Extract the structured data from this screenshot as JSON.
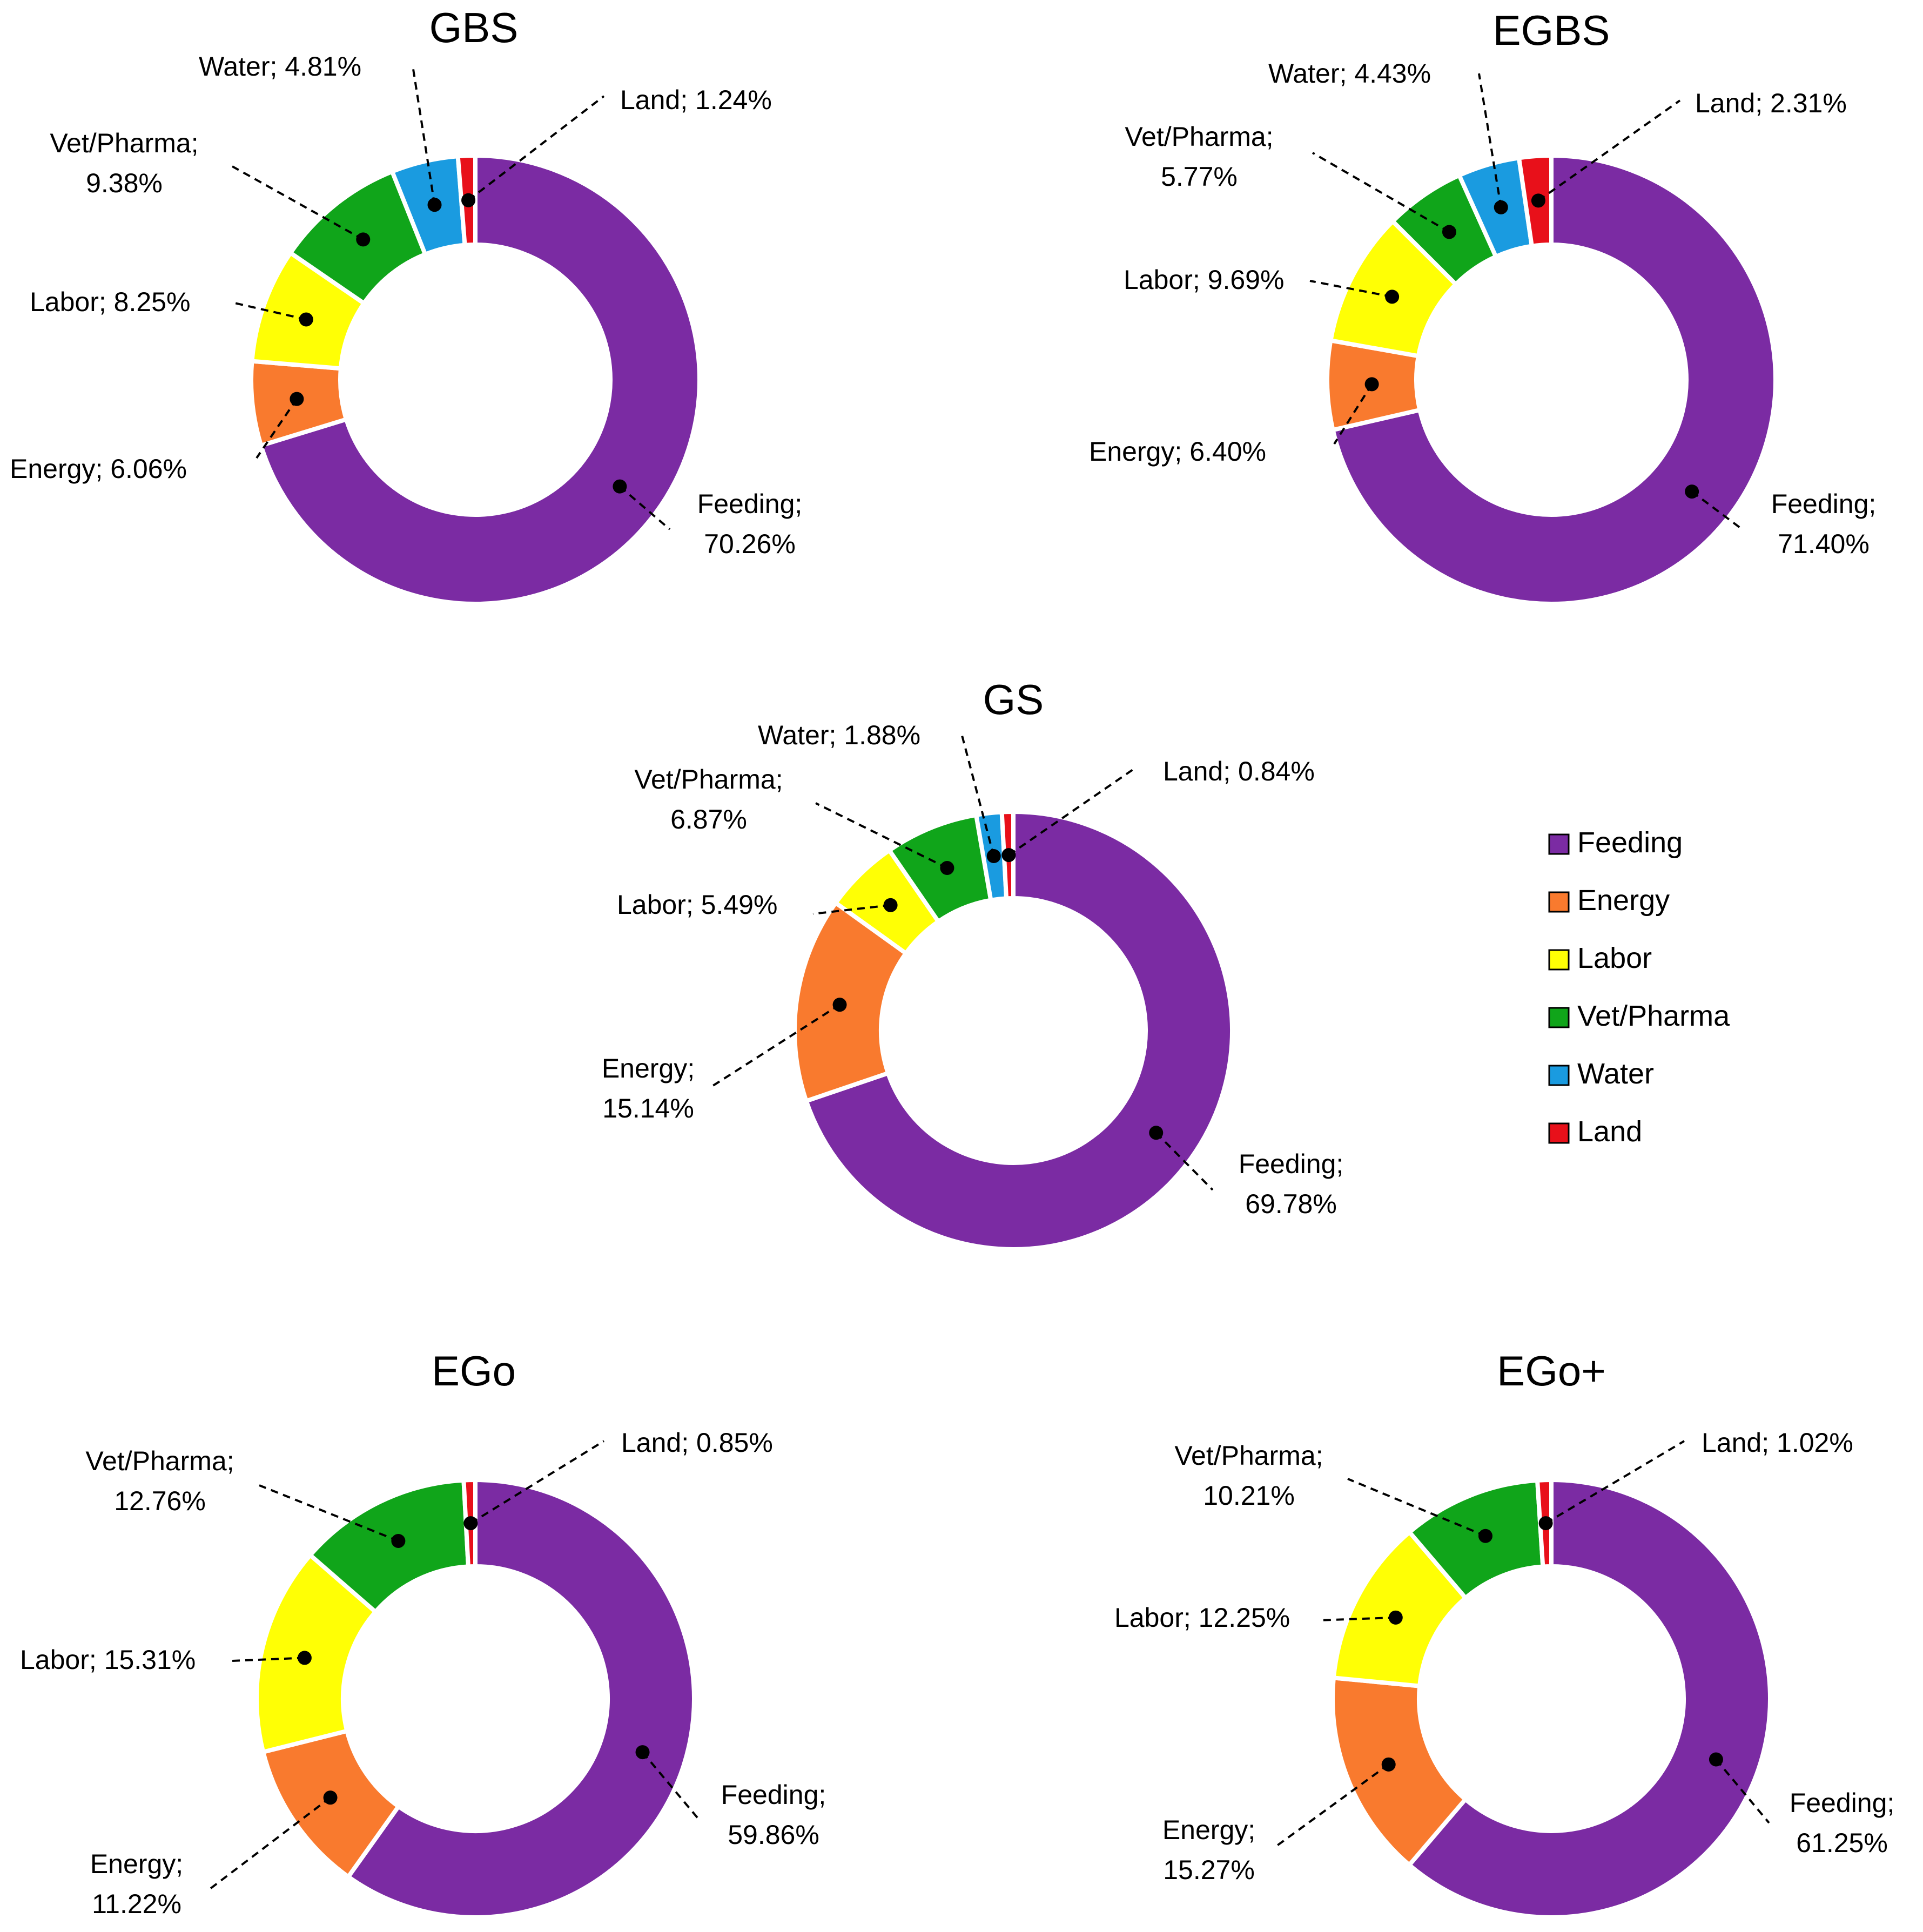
{
  "chart_data": [
    {
      "type": "donut",
      "title": "GBS",
      "categories": [
        "Feeding",
        "Energy",
        "Labor",
        "Vet/Pharma",
        "Water",
        "Land"
      ],
      "values": [
        70.26,
        6.06,
        8.25,
        9.38,
        4.81,
        1.24
      ],
      "labels": [
        "Feeding; 70.26%",
        "Energy; 6.06%",
        "Labor; 8.25%",
        "Vet/Pharma; 9.38%",
        "Water; 4.81%",
        "Land; 1.24%"
      ]
    },
    {
      "type": "donut",
      "title": "EGBS",
      "categories": [
        "Feeding",
        "Energy",
        "Labor",
        "Vet/Pharma",
        "Water",
        "Land"
      ],
      "values": [
        71.4,
        6.4,
        9.69,
        5.77,
        4.43,
        2.31
      ],
      "labels": [
        "Feeding; 71.40%",
        "Energy; 6.40%",
        "Labor; 9.69%",
        "Vet/Pharma; 5.77%",
        "Water; 4.43%",
        "Land; 2.31%"
      ]
    },
    {
      "type": "donut",
      "title": "GS",
      "categories": [
        "Feeding",
        "Energy",
        "Labor",
        "Vet/Pharma",
        "Water",
        "Land"
      ],
      "values": [
        69.78,
        15.14,
        5.49,
        6.87,
        1.88,
        0.84
      ],
      "labels": [
        "Feeding; 69.78%",
        "Energy; 15.14%",
        "Labor; 5.49%",
        "Vet/Pharma; 6.87%",
        "Water; 1.88%",
        "Land; 0.84%"
      ]
    },
    {
      "type": "donut",
      "title": "EGo",
      "categories": [
        "Feeding",
        "Energy",
        "Labor",
        "Vet/Pharma",
        "Land"
      ],
      "values": [
        59.86,
        11.22,
        15.31,
        12.76,
        0.85
      ],
      "labels": [
        "Feeding; 59.86%",
        "Energy; 11.22%",
        "Labor; 15.31%",
        "Vet/Pharma; 12.76%",
        "Land; 0.85%"
      ]
    },
    {
      "type": "donut",
      "title": "EGo+",
      "categories": [
        "Feeding",
        "Energy",
        "Labor",
        "Vet/Pharma",
        "Land"
      ],
      "values": [
        61.25,
        15.27,
        12.25,
        10.21,
        1.02
      ],
      "labels": [
        "Feeding; 61.25%",
        "Energy; 15.27%",
        "Labor; 12.25%",
        "Vet/Pharma; 10.21%",
        "Land; 1.02%"
      ]
    }
  ],
  "legend": {
    "items": [
      {
        "label": "Feeding",
        "color": "#7B2BA3"
      },
      {
        "label": "Energy",
        "color": "#F97A2E"
      },
      {
        "label": "Labor",
        "color": "#FFFF05"
      },
      {
        "label": "Vet/Pharma",
        "color": "#10A51A"
      },
      {
        "label": "Water",
        "color": "#1A9BE0"
      },
      {
        "label": "Land",
        "color": "#E8101A"
      }
    ]
  },
  "colors": {
    "Feeding": "#7B2BA3",
    "Energy": "#F97A2E",
    "Labor": "#FFFF05",
    "Vet/Pharma": "#10A51A",
    "Water": "#1A9BE0",
    "Land": "#E8101A"
  }
}
